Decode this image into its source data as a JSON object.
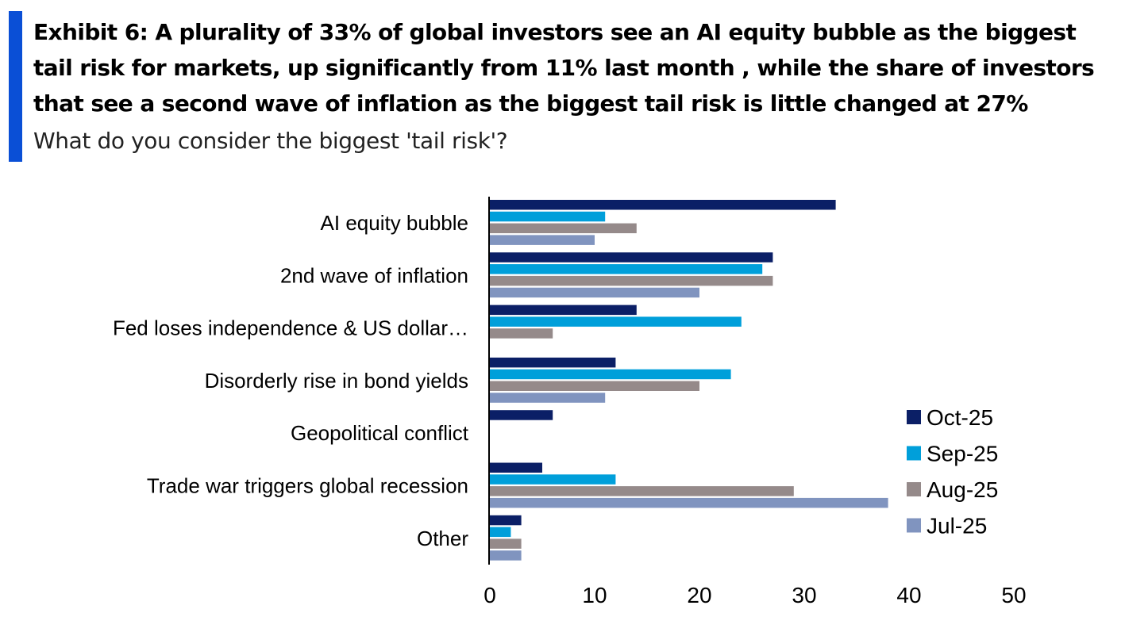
{
  "header": {
    "title": "Exhibit 6: A plurality of 33% of global investors see an AI equity bubble as the biggest tail risk for markets, up significantly from 11% last month , while the share of investors that see a second wave of inflation as the biggest tail risk is little changed at 27%",
    "subtitle": "What do you consider the biggest 'tail risk'?",
    "accent_color": "#0a4fd6"
  },
  "chart_data": {
    "type": "bar",
    "orientation": "horizontal",
    "categories": [
      "AI equity bubble",
      "2nd wave of inflation",
      "Fed loses independence & US dollar…",
      "Disorderly rise in bond yields",
      "Geopolitical conflict",
      "Trade war triggers global recession",
      "Other"
    ],
    "series": [
      {
        "name": "Oct-25",
        "color": "#0b1f66",
        "values": [
          33,
          27,
          14,
          12,
          6,
          5,
          3
        ]
      },
      {
        "name": "Sep-25",
        "color": "#009fda",
        "values": [
          11,
          26,
          24,
          23,
          0,
          12,
          2
        ]
      },
      {
        "name": "Aug-25",
        "color": "#958a8a",
        "values": [
          14,
          27,
          6,
          20,
          0,
          29,
          3
        ]
      },
      {
        "name": "Jul-25",
        "color": "#8094bf",
        "values": [
          10,
          20,
          0,
          11,
          0,
          38,
          3
        ]
      }
    ],
    "xlim": [
      0,
      50
    ],
    "xticks": [
      "0",
      "10",
      "20",
      "30",
      "40",
      "50"
    ],
    "legend_position": "right",
    "grid": false
  }
}
